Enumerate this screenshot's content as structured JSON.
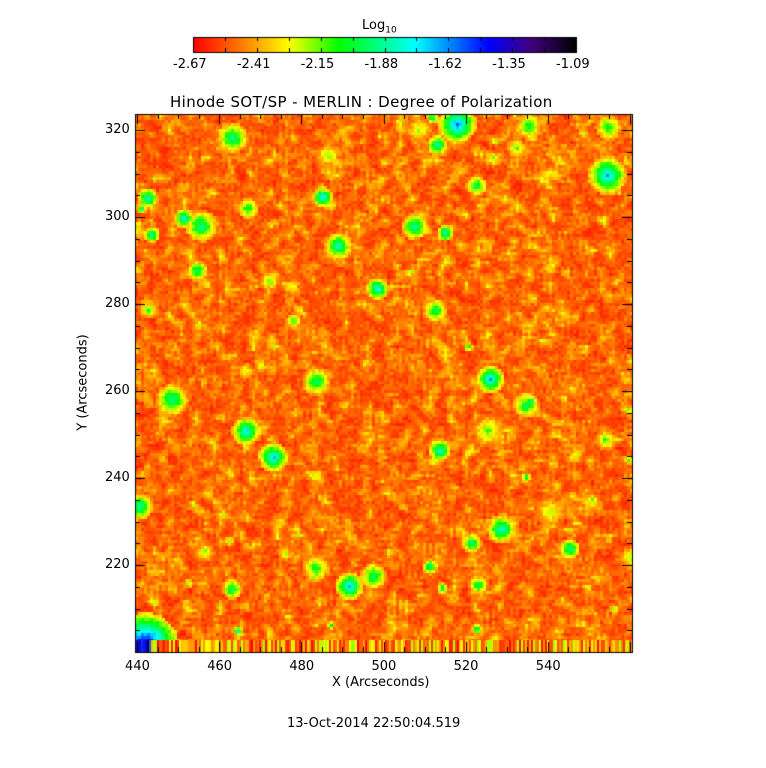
{
  "chart_data": {
    "type": "heatmap",
    "title": "Hinode SOT/SP - MERLIN : Degree of Polarization",
    "xlabel": "X (Arcseconds)",
    "ylabel": "Y (Arcseconds)",
    "xlim": [
      439.5,
      560.5
    ],
    "ylim": [
      200,
      323.7
    ],
    "xticks": [
      440,
      460,
      480,
      500,
      520,
      540
    ],
    "yticks": [
      220,
      240,
      260,
      280,
      300,
      320
    ],
    "colorbar": {
      "label_main": "Log",
      "label_sub": "10",
      "ticks": [
        "-2.67",
        "-2.41",
        "-2.15",
        "-1.88",
        "-1.62",
        "-1.35",
        "-1.09"
      ],
      "range": [
        -2.67,
        -1.09
      ],
      "colormap": [
        "#ff0000",
        "#ff8000",
        "#ffff00",
        "#00ff00",
        "#00ffff",
        "#0000ff",
        "#400080",
        "#000000"
      ]
    },
    "grid": false,
    "description_of_values": "mostly -2.67 to -2.3 (red/orange) with yellow speckles and scattered green-blue patches"
  },
  "footer": {
    "timestamp": "13-Oct-2014 22:50:04.519"
  }
}
